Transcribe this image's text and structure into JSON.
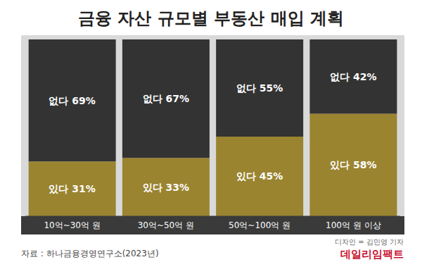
{
  "chart_data": {
    "type": "bar",
    "title": "금융 자산 규모별 부동산 매입 계획",
    "categories": [
      "10억~30억 원",
      "30억~50억 원",
      "50억~100억 원",
      "100억 원 이상"
    ],
    "series": [
      {
        "name": "있다",
        "color": "#9a8430",
        "values": [
          31,
          33,
          45,
          58
        ],
        "value_labels": [
          "있다 31%",
          "있다 33%",
          "있다 45%",
          "있다 58%"
        ]
      },
      {
        "name": "없다",
        "color": "#333333",
        "values": [
          69,
          67,
          55,
          42
        ],
        "value_labels": [
          "없다 69%",
          "없다 67%",
          "없다 55%",
          "없다 42%"
        ]
      }
    ],
    "ylim": [
      0,
      100
    ],
    "stacked": true,
    "data_labels": true,
    "tick_labels": "x",
    "source": "자료 : 하나금융경영연구소(2023년)",
    "credit": "디자인 = 김민영 기자",
    "logo": "데일리임팩트"
  }
}
